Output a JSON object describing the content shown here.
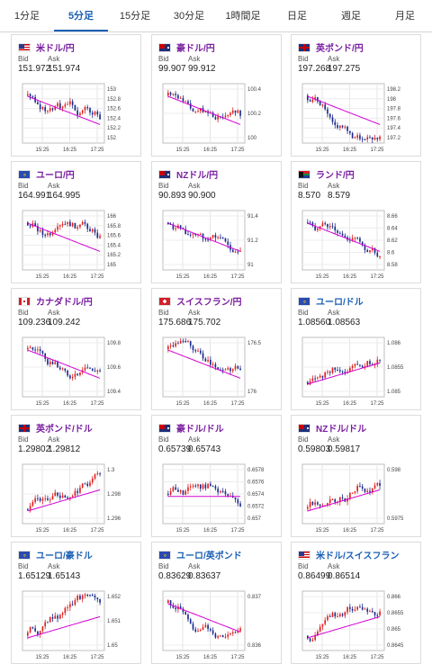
{
  "tabs": [
    {
      "label": "1分足",
      "active": false
    },
    {
      "label": "5分足",
      "active": true
    },
    {
      "label": "15分足",
      "active": false
    },
    {
      "label": "30分足",
      "active": false
    },
    {
      "label": "1時間足",
      "active": false
    },
    {
      "label": "日足",
      "active": false
    },
    {
      "label": "週足",
      "active": false
    },
    {
      "label": "月足",
      "active": false
    }
  ],
  "bid_label": "Bid",
  "ask_label": "Ask",
  "x_ticks": [
    "15:25",
    "16:25",
    "17:25"
  ],
  "colors": {
    "up": "#e02020",
    "down": "#1a2c8c",
    "ma": "#d400d4",
    "accent": "#1a5fb4",
    "pair_text": "#7a1ea0"
  },
  "cards": [
    {
      "pair": "米ドル/円",
      "flag": "us",
      "bid": "151.972",
      "ask": "151.974",
      "yticks": [
        "153",
        "152.8",
        "152.6",
        "152.4",
        "152.2",
        "152"
      ],
      "trend": "down"
    },
    {
      "pair": "豪ドル/円",
      "flag": "au",
      "bid": "99.907",
      "ask": "99.912",
      "yticks": [
        "100.4",
        "100.2",
        "100"
      ],
      "trend": "down"
    },
    {
      "pair": "英ポンド/円",
      "flag": "gb",
      "bid": "197.268",
      "ask": "197.275",
      "yticks": [
        "198.2",
        "198",
        "197.8",
        "197.6",
        "197.4",
        "197.2"
      ],
      "trend": "down"
    },
    {
      "pair": "ユーロ/円",
      "flag": "eu",
      "bid": "164.991",
      "ask": "164.995",
      "yticks": [
        "166",
        "165.8",
        "165.6",
        "165.4",
        "165.2",
        "165"
      ],
      "trend": "down"
    },
    {
      "pair": "NZドル/円",
      "flag": "nz",
      "bid": "90.893",
      "ask": "90.900",
      "yticks": [
        "91.4",
        "91.2",
        "91"
      ],
      "trend": "down"
    },
    {
      "pair": "ランド/円",
      "flag": "za",
      "bid": "8.570",
      "ask": "8.579",
      "yticks": [
        "8.66",
        "8.64",
        "8.62",
        "8.6",
        "8.58"
      ],
      "trend": "down"
    },
    {
      "pair": "カナダドル/円",
      "flag": "ca",
      "bid": "109.236",
      "ask": "109.242",
      "yticks": [
        "109.8",
        "109.6",
        "109.4"
      ],
      "trend": "down"
    },
    {
      "pair": "スイスフラン/円",
      "flag": "ch",
      "bid": "175.686",
      "ask": "175.702",
      "yticks": [
        "176.5",
        "176"
      ],
      "trend": "down"
    },
    {
      "pair": "ユーロ/ドル",
      "flag": "eu",
      "bid": "1.08560",
      "ask": "1.08563",
      "yticks": [
        "1.086",
        "1.0855",
        "1.085"
      ],
      "trend": "up"
    },
    {
      "pair": "英ポンド/ドル",
      "flag": "gb",
      "bid": "1.29802",
      "ask": "1.29812",
      "yticks": [
        "1.3",
        "1.298",
        "1.296"
      ],
      "trend": "up"
    },
    {
      "pair": "豪ドル/ドル",
      "flag": "au",
      "bid": "0.65739",
      "ask": "0.65743",
      "yticks": [
        "0.6578",
        "0.6576",
        "0.6574",
        "0.6572",
        "0.657"
      ],
      "trend": "flat"
    },
    {
      "pair": "NZドル/ドル",
      "flag": "nz",
      "bid": "0.59803",
      "ask": "0.59817",
      "yticks": [
        "0.598",
        "0.5975"
      ],
      "trend": "up"
    },
    {
      "pair": "ユーロ/豪ドル",
      "flag": "eu",
      "bid": "1.65129",
      "ask": "1.65143",
      "yticks": [
        "1.652",
        "1.651",
        "1.65"
      ],
      "trend": "up"
    },
    {
      "pair": "ユーロ/英ポンド",
      "flag": "eu",
      "bid": "0.83629",
      "ask": "0.83637",
      "yticks": [
        "0.837",
        "0.836"
      ],
      "trend": "down"
    },
    {
      "pair": "米ドル/スイスフラン",
      "flag": "us",
      "bid": "0.86499",
      "ask": "0.86514",
      "yticks": [
        "0.866",
        "0.8655",
        "0.865",
        "0.8645"
      ],
      "trend": "up"
    }
  ]
}
